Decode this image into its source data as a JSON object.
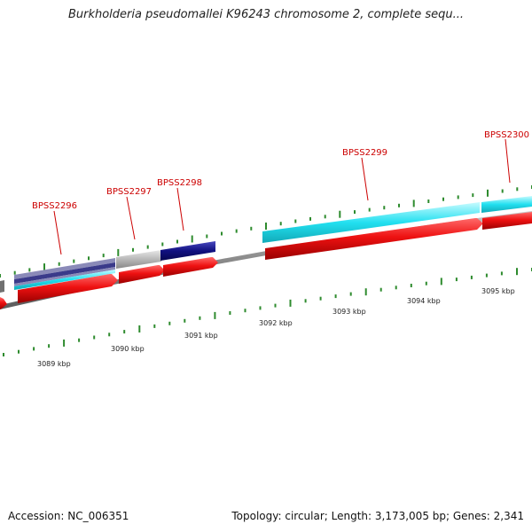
{
  "title": "Burkholderia pseudomallei K96243 chromosome 2, complete sequ...",
  "footer": {
    "accession": "Accession: NC_006351",
    "stats": "Topology: circular; Length: 3,173,005 bp; Genes: 2,341"
  },
  "genes": [
    {
      "label": "BPSS2296"
    },
    {
      "label": "BPSS2297"
    },
    {
      "label": "BPSS2298"
    },
    {
      "label": "BPSS2299"
    },
    {
      "label": "BPSS2300"
    }
  ],
  "scale_labels": [
    "3089 kbp",
    "3090 kbp",
    "3091 kbp",
    "3092 kbp",
    "3093 kbp",
    "3094 kbp",
    "3095 kbp"
  ],
  "colors": {
    "backbone": "#8a8a8a",
    "cds": "#ee1111",
    "gene_label": "#cc0000",
    "ticks": "#2e8b2e",
    "cyan_feature": "#22e0f0",
    "navy_feature": "#101080",
    "grey_feature": "#b8b8b8"
  }
}
